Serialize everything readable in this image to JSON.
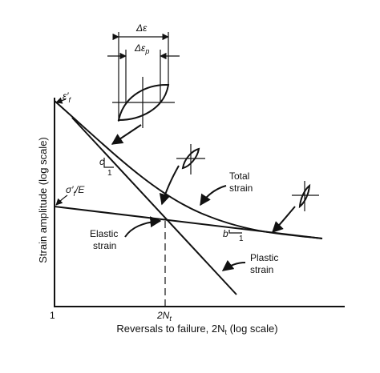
{
  "labels": {
    "delta_eps": "Δε",
    "delta_eps_p": {
      "main": "Δε",
      "sub": "p"
    },
    "eps_f": {
      "main": "ε′",
      "sub": "f"
    },
    "sigma_f_e": {
      "main": "σ′",
      "sub": "f",
      "tail": "/E"
    },
    "c": "c",
    "c_run": "1",
    "b": "b",
    "b_run": "1",
    "total": [
      "Total",
      "strain"
    ],
    "elastic": [
      "Elastic",
      "strain"
    ],
    "plastic": [
      "Plastic",
      "strain"
    ]
  },
  "axes": {
    "y_title": "Strain amplitude (log scale)",
    "x_title": {
      "main": "Reversals to failure, 2N",
      "sub": "t",
      "tail": " (log scale)"
    },
    "origin": "1",
    "transition": {
      "main": "2N",
      "sub": "t"
    }
  }
}
